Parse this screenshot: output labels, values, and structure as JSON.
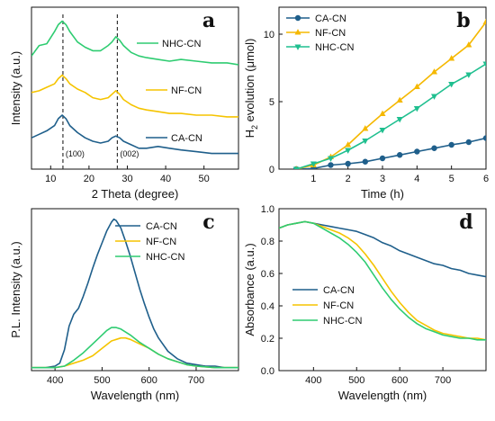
{
  "chart_data": [
    {
      "panel": "a",
      "type": "line",
      "xlabel": "2 Theta (degree)",
      "ylabel": "Intensity (a.u.)",
      "xlim": [
        5,
        59
      ],
      "xticks": [
        10,
        20,
        30,
        40,
        50
      ],
      "yticks": false,
      "dashed_lines_x": [
        13.2,
        27.4
      ],
      "annotations": [
        {
          "text": "(100)",
          "x": 13.2
        },
        {
          "text": "(002)",
          "x": 27.4
        }
      ],
      "legend_position": "right (inline labels)",
      "series": [
        {
          "name": "NHC-CN",
          "color": "#2ecc71",
          "x": [
            5,
            7,
            9,
            11,
            12,
            13,
            14,
            15,
            17,
            19,
            21,
            23,
            25,
            26,
            27,
            28,
            29,
            31,
            33,
            35,
            38,
            41,
            44,
            48,
            52,
            56,
            59
          ],
          "y": [
            0.8,
            0.86,
            0.87,
            0.94,
            0.98,
            1.0,
            0.98,
            0.94,
            0.88,
            0.85,
            0.83,
            0.83,
            0.86,
            0.88,
            0.91,
            0.89,
            0.86,
            0.82,
            0.8,
            0.79,
            0.78,
            0.77,
            0.78,
            0.77,
            0.76,
            0.76,
            0.75
          ]
        },
        {
          "name": "NF-CN",
          "color": "#f5c400",
          "x": [
            5,
            7,
            9,
            11,
            12,
            13,
            14,
            15,
            17,
            19,
            21,
            23,
            25,
            26,
            27,
            28,
            29,
            31,
            33,
            35,
            38,
            41,
            44,
            48,
            52,
            56,
            59
          ],
          "y": [
            0.59,
            0.6,
            0.62,
            0.64,
            0.67,
            0.69,
            0.67,
            0.64,
            0.61,
            0.59,
            0.56,
            0.55,
            0.56,
            0.58,
            0.6,
            0.58,
            0.55,
            0.52,
            0.5,
            0.49,
            0.48,
            0.47,
            0.47,
            0.46,
            0.46,
            0.45,
            0.45
          ]
        },
        {
          "name": "CA-CN",
          "color": "#1f5f8b",
          "x": [
            5,
            7,
            9,
            11,
            12,
            13,
            14,
            15,
            17,
            19,
            21,
            23,
            25,
            26,
            27,
            28,
            29,
            31,
            33,
            35,
            38,
            41,
            44,
            48,
            52,
            56,
            59
          ],
          "y": [
            0.33,
            0.35,
            0.37,
            0.4,
            0.44,
            0.46,
            0.44,
            0.4,
            0.36,
            0.33,
            0.31,
            0.3,
            0.31,
            0.33,
            0.34,
            0.33,
            0.31,
            0.29,
            0.27,
            0.27,
            0.28,
            0.27,
            0.26,
            0.25,
            0.24,
            0.24,
            0.24
          ]
        }
      ]
    },
    {
      "panel": "b",
      "type": "line",
      "xlabel": "Time (h)",
      "ylabel": "H2 evolution (μmol)",
      "xlim": [
        0,
        6
      ],
      "ylim": [
        0,
        12
      ],
      "xticks": [
        1,
        2,
        3,
        4,
        5,
        6
      ],
      "yticks": [
        0,
        5,
        10
      ],
      "legend_position": "top-left",
      "series": [
        {
          "name": "CA-CN",
          "color": "#1f5f8b",
          "marker": "circle",
          "x": [
            0.5,
            1,
            1.5,
            2,
            2.5,
            3,
            3.5,
            4,
            4.5,
            5,
            5.5,
            6
          ],
          "y": [
            0,
            0.05,
            0.3,
            0.4,
            0.55,
            0.8,
            1.05,
            1.3,
            1.55,
            1.8,
            2.0,
            2.3
          ]
        },
        {
          "name": "NF-CN",
          "color": "#f5b800",
          "marker": "triangle-up",
          "x": [
            0.5,
            1,
            1.5,
            2,
            2.5,
            3,
            3.5,
            4,
            4.5,
            5,
            5.5,
            6
          ],
          "y": [
            0,
            0.3,
            0.9,
            1.8,
            3.0,
            4.1,
            5.1,
            6.1,
            7.2,
            8.2,
            9.2,
            10.9
          ]
        },
        {
          "name": "NHC-CN",
          "color": "#1fbf8f",
          "marker": "triangle-down",
          "x": [
            0.5,
            1,
            1.5,
            2,
            2.5,
            3,
            3.5,
            4,
            4.5,
            5,
            5.5,
            6
          ],
          "y": [
            0,
            0.4,
            0.8,
            1.4,
            2.1,
            2.9,
            3.7,
            4.5,
            5.4,
            6.3,
            7.0,
            7.8
          ]
        }
      ]
    },
    {
      "panel": "c",
      "type": "line",
      "xlabel": "Wavelength (nm)",
      "ylabel": "P.L. Intensity (a.u.)",
      "xlim": [
        350,
        790
      ],
      "xticks": [
        400,
        500,
        600,
        700
      ],
      "yticks": false,
      "legend_position": "top-right",
      "series": [
        {
          "name": "CA-CN",
          "color": "#1f5f8b",
          "x": [
            350,
            380,
            400,
            410,
            420,
            430,
            440,
            450,
            460,
            470,
            480,
            490,
            500,
            510,
            520,
            525,
            530,
            540,
            550,
            560,
            570,
            580,
            590,
            600,
            610,
            620,
            640,
            660,
            680,
            700,
            720,
            740,
            760,
            790
          ],
          "y": [
            0.0,
            0.0,
            0.01,
            0.03,
            0.12,
            0.28,
            0.36,
            0.4,
            0.48,
            0.57,
            0.67,
            0.76,
            0.84,
            0.92,
            0.98,
            1.0,
            0.99,
            0.94,
            0.85,
            0.75,
            0.64,
            0.53,
            0.43,
            0.34,
            0.26,
            0.2,
            0.11,
            0.06,
            0.03,
            0.02,
            0.01,
            0.01,
            0.0,
            0.0
          ]
        },
        {
          "name": "NF-CN",
          "color": "#f5c400",
          "x": [
            350,
            400,
            420,
            440,
            460,
            480,
            500,
            520,
            540,
            550,
            560,
            580,
            600,
            620,
            640,
            660,
            680,
            700,
            740,
            790
          ],
          "y": [
            0.0,
            0.0,
            0.01,
            0.03,
            0.05,
            0.08,
            0.13,
            0.18,
            0.2,
            0.2,
            0.19,
            0.16,
            0.13,
            0.09,
            0.06,
            0.04,
            0.02,
            0.01,
            0.0,
            0.0
          ]
        },
        {
          "name": "NHC-CN",
          "color": "#2ecc71",
          "x": [
            350,
            400,
            420,
            440,
            460,
            480,
            500,
            510,
            520,
            530,
            540,
            560,
            580,
            600,
            620,
            640,
            660,
            680,
            700,
            740,
            790
          ],
          "y": [
            0.0,
            0.0,
            0.01,
            0.05,
            0.1,
            0.16,
            0.22,
            0.25,
            0.27,
            0.27,
            0.26,
            0.22,
            0.17,
            0.13,
            0.09,
            0.06,
            0.04,
            0.02,
            0.01,
            0.0,
            0.0
          ]
        }
      ]
    },
    {
      "panel": "d",
      "type": "line",
      "xlabel": "Wavelength (nm)",
      "ylabel": "Absorbance (a.u.)",
      "xlim": [
        320,
        800
      ],
      "ylim": [
        0.0,
        1.0
      ],
      "xticks": [
        400,
        500,
        600,
        700
      ],
      "yticks": [
        0.0,
        0.2,
        0.4,
        0.6,
        0.8,
        1.0
      ],
      "legend_position": "middle-left",
      "series": [
        {
          "name": "CA-CN",
          "color": "#1f5f8b",
          "x": [
            320,
            340,
            360,
            380,
            400,
            420,
            440,
            460,
            480,
            500,
            520,
            540,
            560,
            580,
            600,
            620,
            640,
            660,
            680,
            700,
            720,
            740,
            760,
            780,
            800
          ],
          "y": [
            0.88,
            0.9,
            0.91,
            0.92,
            0.91,
            0.9,
            0.89,
            0.88,
            0.87,
            0.86,
            0.84,
            0.82,
            0.79,
            0.77,
            0.74,
            0.72,
            0.7,
            0.68,
            0.66,
            0.65,
            0.63,
            0.62,
            0.6,
            0.59,
            0.58
          ]
        },
        {
          "name": "NF-CN",
          "color": "#f5c400",
          "x": [
            320,
            340,
            360,
            380,
            400,
            420,
            440,
            460,
            480,
            500,
            520,
            540,
            560,
            580,
            600,
            620,
            640,
            660,
            680,
            700,
            720,
            740,
            760,
            780,
            800
          ],
          "y": [
            0.88,
            0.9,
            0.91,
            0.92,
            0.91,
            0.89,
            0.87,
            0.85,
            0.82,
            0.78,
            0.72,
            0.65,
            0.57,
            0.49,
            0.42,
            0.36,
            0.31,
            0.28,
            0.25,
            0.23,
            0.22,
            0.21,
            0.2,
            0.2,
            0.19
          ]
        },
        {
          "name": "NHC-CN",
          "color": "#2ecc71",
          "x": [
            320,
            340,
            360,
            380,
            400,
            420,
            440,
            460,
            480,
            500,
            520,
            540,
            560,
            580,
            600,
            620,
            640,
            660,
            680,
            700,
            720,
            740,
            760,
            780,
            800
          ],
          "y": [
            0.88,
            0.9,
            0.91,
            0.92,
            0.91,
            0.88,
            0.85,
            0.82,
            0.78,
            0.73,
            0.67,
            0.59,
            0.51,
            0.44,
            0.38,
            0.33,
            0.29,
            0.26,
            0.24,
            0.22,
            0.21,
            0.2,
            0.2,
            0.19,
            0.19
          ]
        }
      ]
    }
  ]
}
